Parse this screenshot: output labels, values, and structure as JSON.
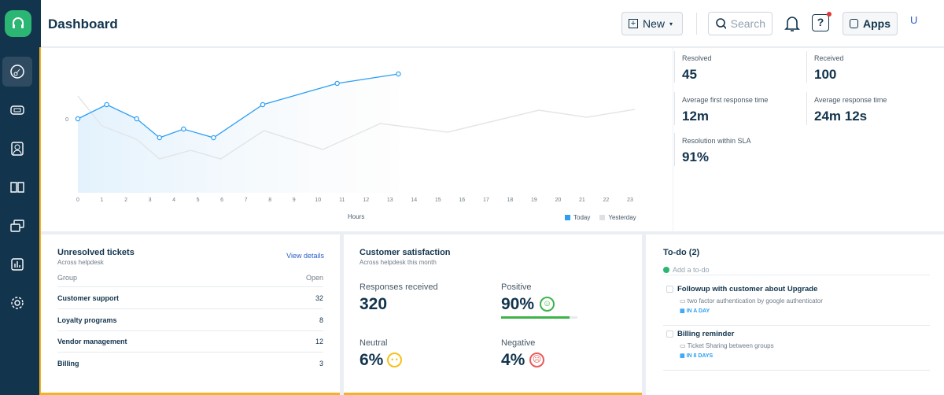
{
  "header": {
    "title": "Dashboard",
    "new_label": "New",
    "search_placeholder": "Search",
    "apps_label": "Apps",
    "avatar": "U"
  },
  "stats": [
    {
      "label": "Resolved",
      "value": "45"
    },
    {
      "label": "Received",
      "value": "100"
    },
    {
      "label": "Average first response time",
      "value": "12m"
    },
    {
      "label": "Average response time",
      "value": "24m 12s"
    },
    {
      "label": "Resolution within SLA",
      "value": "91%"
    }
  ],
  "chart_data": {
    "type": "line",
    "xlabel": "Hours",
    "ylabel": "",
    "x_ticks": [
      "0",
      "1",
      "2",
      "3",
      "4",
      "5",
      "6",
      "7",
      "8",
      "9",
      "10",
      "11",
      "12",
      "13",
      "14",
      "15",
      "16",
      "17",
      "18",
      "19",
      "20",
      "21",
      "22",
      "23"
    ],
    "y_ticks": [
      "0"
    ],
    "xlim": [
      0,
      23
    ],
    "legend": "bottom-right",
    "series": [
      {
        "name": "Today",
        "color": "#2c9ef4",
        "x": [
          0,
          1.2,
          2.45,
          3.4,
          4.4,
          5.65,
          7.7,
          10.8,
          13.35
        ],
        "y": [
          0,
          0.9,
          0,
          -1.2,
          -0.65,
          -1.2,
          0.9,
          2.25,
          2.85
        ]
      },
      {
        "name": "Yesterday",
        "color": "#e3e6e9",
        "x": [
          0,
          1,
          2.45,
          3.4,
          4.7,
          5.95,
          7.75,
          10.2,
          12.6,
          15.4,
          19.2,
          21.2,
          23.2
        ],
        "y": [
          1.45,
          -0.45,
          -1.3,
          -2.55,
          -2,
          -2.55,
          -0.75,
          -1.95,
          -0.3,
          -0.85,
          0.55,
          0.1,
          0.6
        ]
      }
    ]
  },
  "unresolved": {
    "title": "Unresolved tickets",
    "subtitle": "Across helpdesk",
    "link": "View details",
    "col_group": "Group",
    "col_open": "Open",
    "rows": [
      {
        "group": "Customer support",
        "open": "32"
      },
      {
        "group": "Loyalty programs",
        "open": "8"
      },
      {
        "group": "Vendor management",
        "open": "12"
      },
      {
        "group": "Billing",
        "open": "3"
      }
    ]
  },
  "csat": {
    "title": "Customer satisfaction",
    "subtitle": "Across helpdesk this month",
    "responses_label": "Responses received",
    "responses": "320",
    "positive_label": "Positive",
    "positive": "90%",
    "positive_fraction": 0.9,
    "neutral_label": "Neutral",
    "neutral": "6%",
    "negative_label": "Negative",
    "negative": "4%"
  },
  "todo": {
    "title": "To-do (2)",
    "add_placeholder": "Add a to-do",
    "items": [
      {
        "title": "Followup with customer about Upgrade",
        "ticket": "two factor authentication by google authenticator",
        "due": "IN A DAY"
      },
      {
        "title": "Billing reminder",
        "ticket": "Ticket Sharing between groups",
        "due": "IN 8 DAYS"
      }
    ]
  }
}
